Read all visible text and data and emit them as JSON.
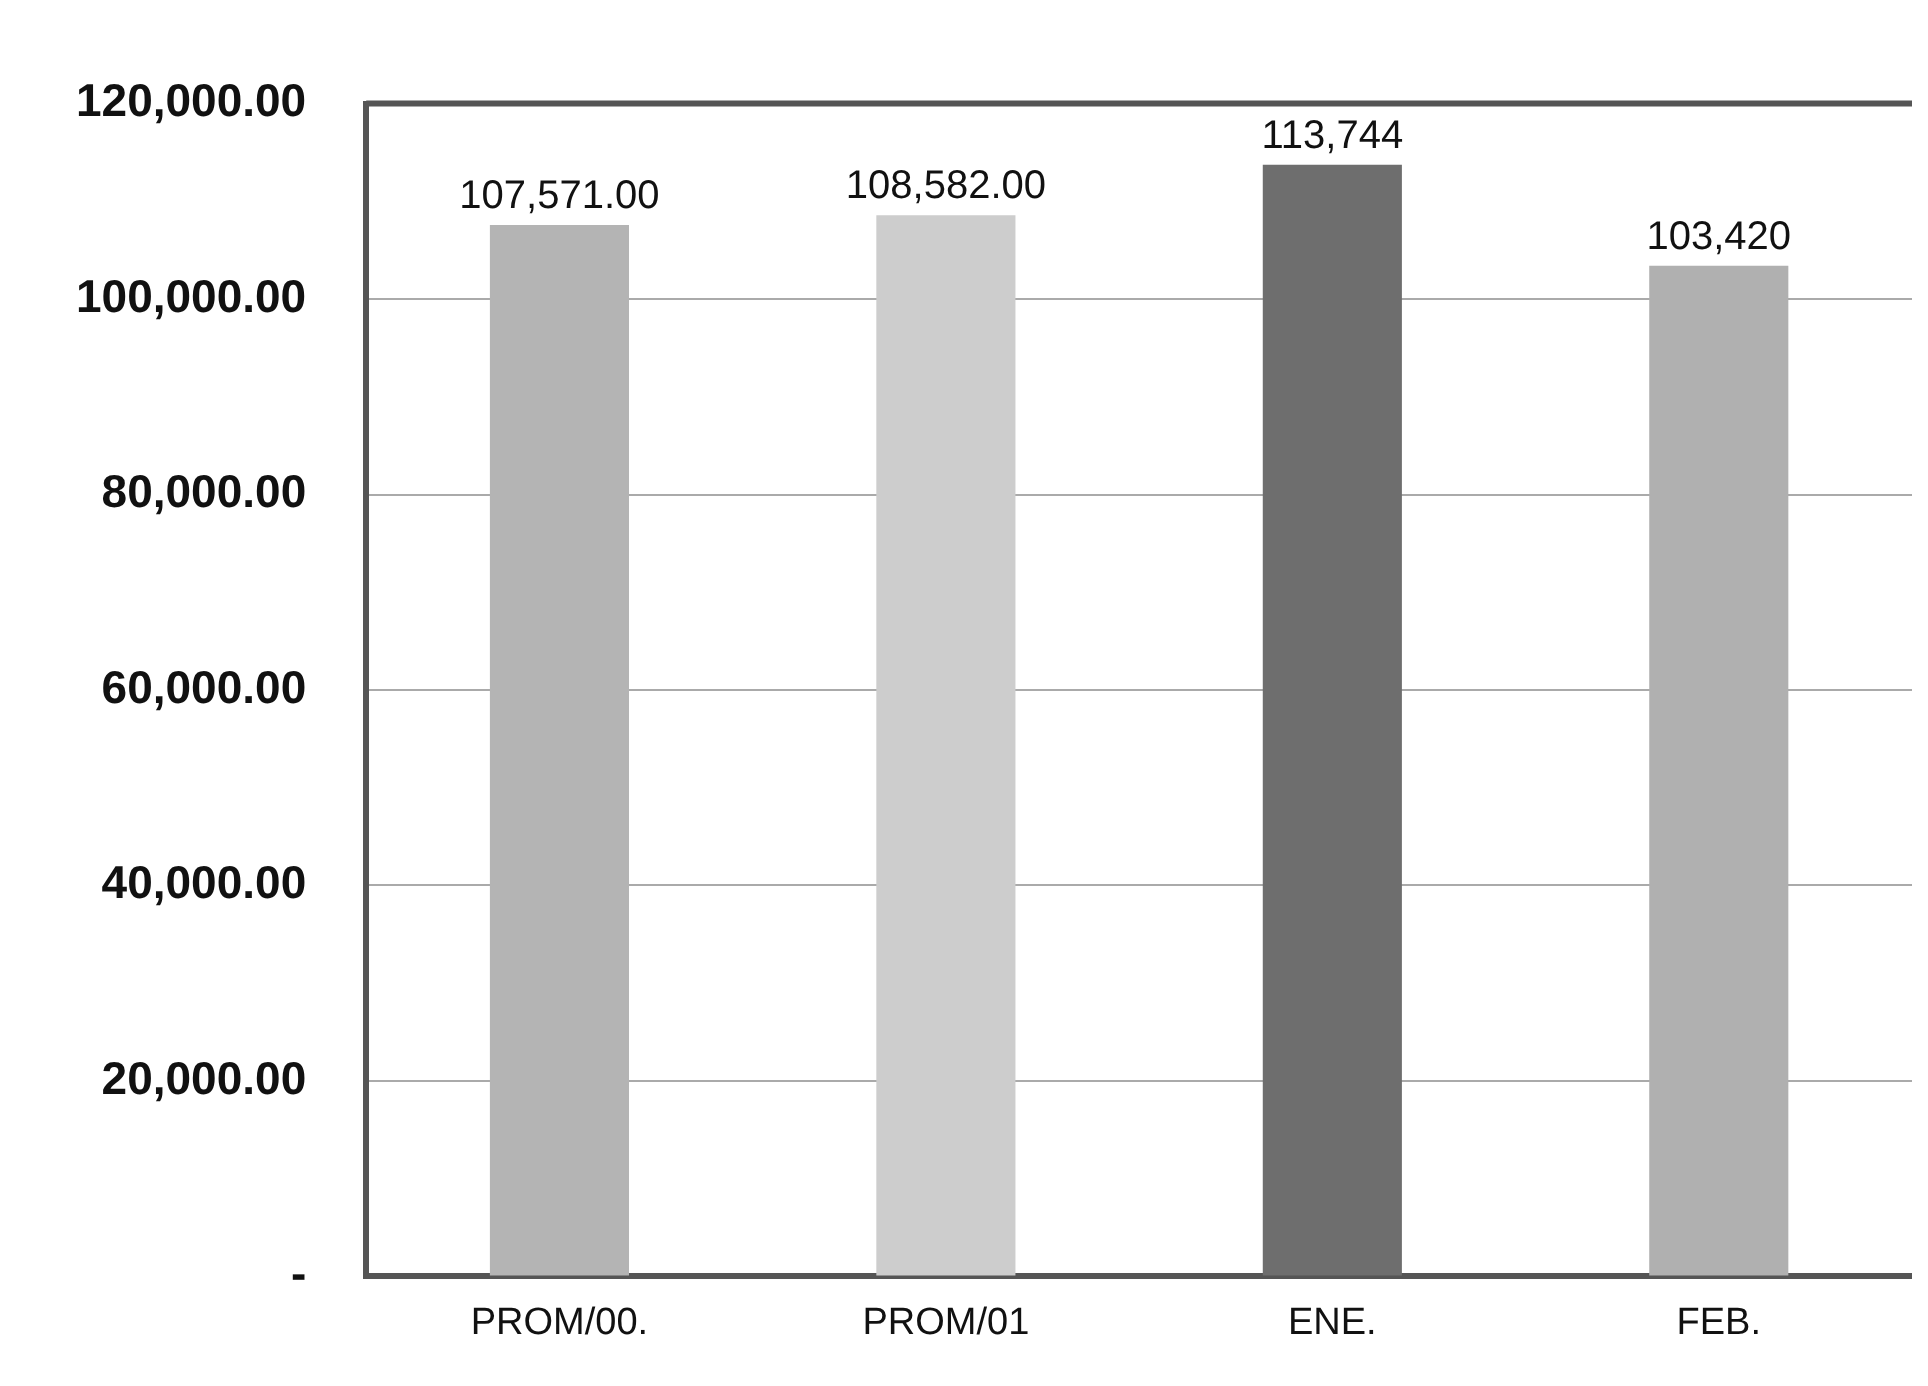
{
  "chart_data": {
    "type": "bar",
    "categories": [
      "PROM/00.",
      "PROM/01",
      "ENE.",
      "FEB."
    ],
    "values": [
      107571,
      108582,
      113744,
      103420
    ],
    "colors": [
      "#b4b4b4",
      "#cdcdcd",
      "#6e6e6e",
      "#b0b0b0"
    ],
    "value_labels": [
      "107,571.00",
      "108,582.00",
      "113,744",
      "103,420"
    ],
    "ylim": [
      0,
      120000
    ],
    "yticks": [
      {
        "value": 0,
        "label": "-"
      },
      {
        "value": 20000,
        "label": "20,000.00"
      },
      {
        "value": 40000,
        "label": "40,000.00"
      },
      {
        "value": 60000,
        "label": "60,000.00"
      },
      {
        "value": 80000,
        "label": "80,000.00"
      },
      {
        "value": 100000,
        "label": "100,000.00"
      },
      {
        "value": 120000,
        "label": "120,000.00"
      }
    ],
    "grid": "y"
  }
}
